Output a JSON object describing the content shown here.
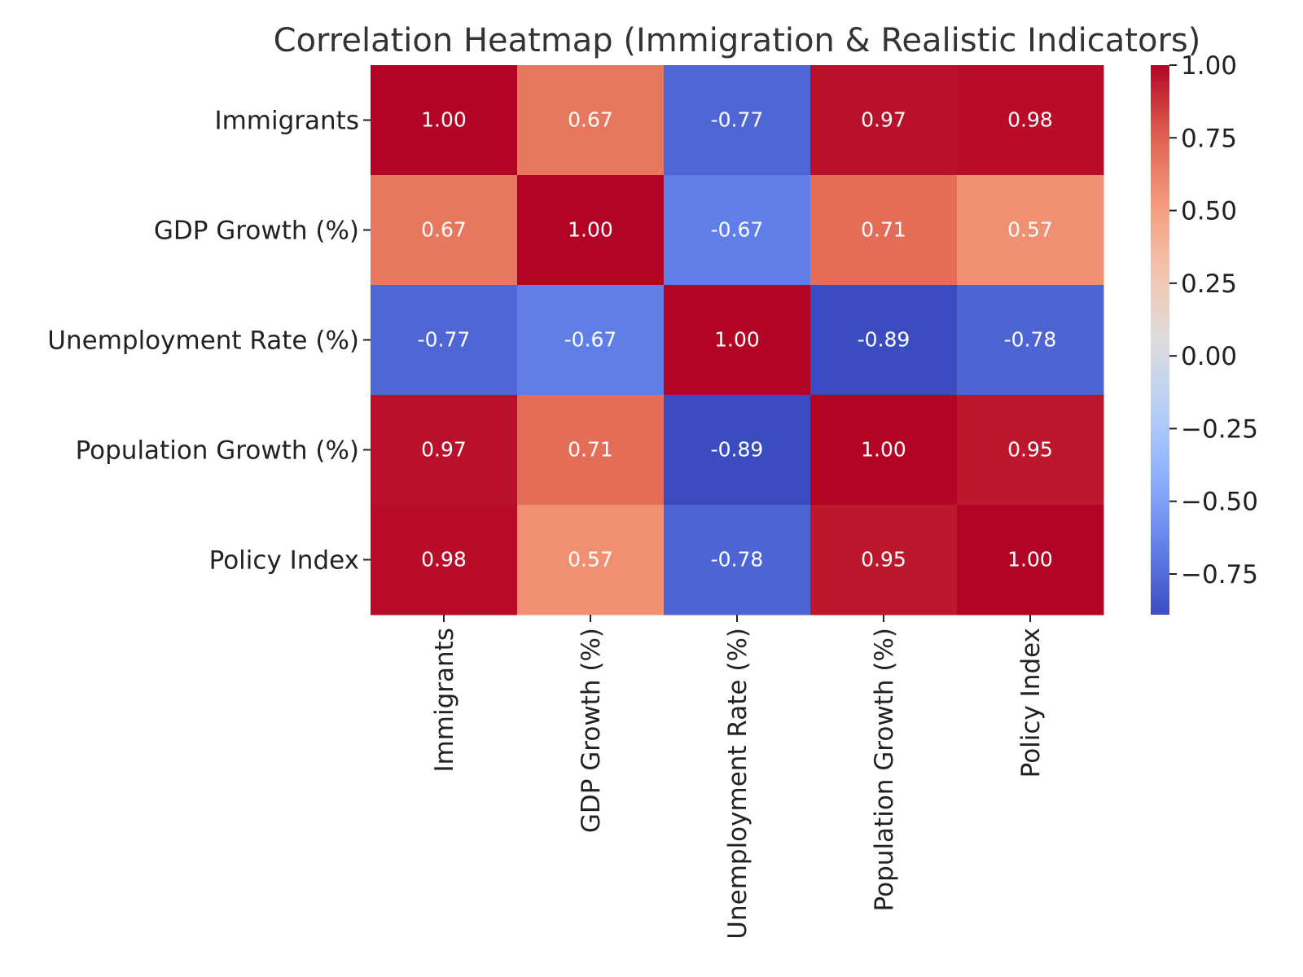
{
  "chart_data": {
    "type": "heatmap",
    "title": "Correlation Heatmap (Immigration & Realistic Indicators)",
    "xlabel": "",
    "ylabel": "",
    "labels": [
      "Immigrants",
      "GDP Growth (%)",
      "Unemployment Rate (%)",
      "Population Growth (%)",
      "Policy Index"
    ],
    "matrix": [
      [
        1.0,
        0.67,
        -0.77,
        0.97,
        0.98
      ],
      [
        0.67,
        1.0,
        -0.67,
        0.71,
        0.57
      ],
      [
        -0.77,
        -0.67,
        1.0,
        -0.89,
        -0.78
      ],
      [
        0.97,
        0.71,
        -0.89,
        1.0,
        0.95
      ],
      [
        0.98,
        0.57,
        -0.78,
        0.95,
        1.0
      ]
    ],
    "annotation_format": "2 decimals",
    "colormap": "coolwarm",
    "color_range": [
      -0.89,
      1.0
    ],
    "colorbar_ticks": [
      1.0,
      0.75,
      0.5,
      0.25,
      0.0,
      -0.25,
      -0.5,
      -0.75
    ],
    "colorbar_tick_labels": [
      "1.00",
      "0.75",
      "0.50",
      "0.25",
      "0.00",
      "−0.25",
      "−0.50",
      "−0.75"
    ],
    "colors": {
      "low": "#3b4cc0",
      "mid": "#dddddd",
      "high": "#b40426",
      "text": "#222222",
      "annotation": "#ffffff"
    }
  }
}
